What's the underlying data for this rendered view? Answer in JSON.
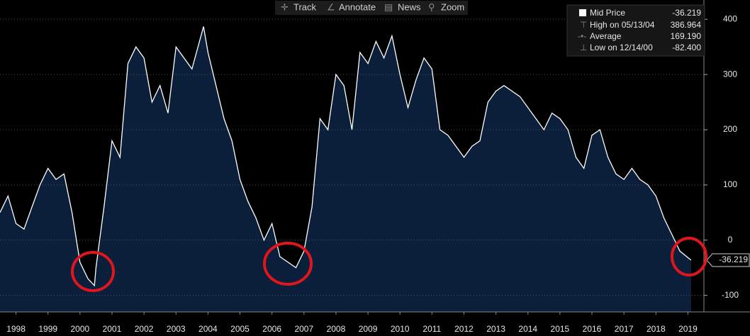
{
  "toolbar": [
    "Track",
    "Annotate",
    "News",
    "Zoom"
  ],
  "chart_data": {
    "type": "area",
    "series": [
      {
        "name": "Mid Price",
        "color": "#ffffff",
        "fill": "#0b1f3a",
        "x": [
          1998.0,
          1998.25,
          1998.5,
          1998.75,
          1999.0,
          1999.25,
          1999.5,
          1999.75,
          2000.0,
          2000.25,
          2000.5,
          2000.75,
          2000.95,
          2001.0,
          2001.25,
          2001.5,
          2001.75,
          2002.0,
          2002.25,
          2002.5,
          2002.75,
          2003.0,
          2003.25,
          2003.5,
          2003.75,
          2004.0,
          2004.36,
          2004.5,
          2004.75,
          2005.0,
          2005.25,
          2005.5,
          2005.75,
          2006.0,
          2006.25,
          2006.5,
          2006.75,
          2007.0,
          2007.25,
          2007.5,
          2007.75,
          2008.0,
          2008.25,
          2008.5,
          2008.75,
          2009.0,
          2009.25,
          2009.5,
          2009.75,
          2010.0,
          2010.25,
          2010.5,
          2010.75,
          2011.0,
          2011.25,
          2011.5,
          2011.75,
          2012.0,
          2012.25,
          2012.5,
          2012.75,
          2013.0,
          2013.25,
          2013.5,
          2013.75,
          2014.0,
          2014.25,
          2014.5,
          2014.75,
          2015.0,
          2015.25,
          2015.5,
          2015.75,
          2016.0,
          2016.25,
          2016.5,
          2016.75,
          2017.0,
          2017.25,
          2017.5,
          2017.75,
          2018.0,
          2018.25,
          2018.5,
          2018.75,
          2019.0,
          2019.25,
          2019.6
        ],
        "values": [
          50,
          80,
          30,
          20,
          60,
          100,
          130,
          110,
          120,
          50,
          -40,
          -70,
          -82.4,
          -50,
          60,
          180,
          150,
          320,
          350,
          330,
          250,
          280,
          230,
          350,
          330,
          310,
          386.964,
          340,
          280,
          220,
          180,
          110,
          70,
          40,
          0,
          30,
          -30,
          -40,
          -50,
          -20,
          60,
          220,
          200,
          300,
          280,
          200,
          340,
          320,
          360,
          330,
          370,
          300,
          240,
          290,
          330,
          310,
          200,
          190,
          170,
          150,
          170,
          180,
          250,
          270,
          280,
          270,
          260,
          240,
          220,
          200,
          230,
          220,
          200,
          150,
          130,
          190,
          200,
          150,
          120,
          110,
          130,
          110,
          100,
          80,
          40,
          10,
          -20,
          -36.219
        ]
      }
    ],
    "stats": [
      {
        "name": "High on 05/13/04",
        "value": 386.964
      },
      {
        "name": "Average",
        "value": 169.19,
        "label": "169.190"
      },
      {
        "name": "Low on 12/14/00",
        "value": -82.4,
        "label": "-82.400"
      }
    ],
    "xlim": [
      1998,
      2020
    ],
    "xticks": [
      {
        "value": 1998.5,
        "label": "1998"
      },
      {
        "value": 1999.5,
        "label": "1999"
      },
      {
        "value": 2000.5,
        "label": "2000"
      },
      {
        "value": 2001.5,
        "label": "2001"
      },
      {
        "value": 2002.5,
        "label": "2002"
      },
      {
        "value": 2003.5,
        "label": "2003"
      },
      {
        "value": 2004.5,
        "label": "2004"
      },
      {
        "value": 2005.5,
        "label": "2005"
      },
      {
        "value": 2006.5,
        "label": "2006"
      },
      {
        "value": 2007.5,
        "label": "2007"
      },
      {
        "value": 2008.5,
        "label": "2008"
      },
      {
        "value": 2009.5,
        "label": "2009"
      },
      {
        "value": 2010.5,
        "label": "2010"
      },
      {
        "value": 2011.5,
        "label": "2011"
      },
      {
        "value": 2012.5,
        "label": "2012"
      },
      {
        "value": 2013.5,
        "label": "2013"
      },
      {
        "value": 2014.5,
        "label": "2014"
      },
      {
        "value": 2015.5,
        "label": "2015"
      },
      {
        "value": 2016.5,
        "label": "2016"
      },
      {
        "value": 2017.5,
        "label": "2017"
      },
      {
        "value": 2018.5,
        "label": "2018"
      },
      {
        "value": 2019.5,
        "label": "2019"
      }
    ],
    "ylim": [
      -130,
      435
    ],
    "yticks": [
      -100,
      0,
      100,
      200,
      300,
      400
    ],
    "grid": true
  }
}
